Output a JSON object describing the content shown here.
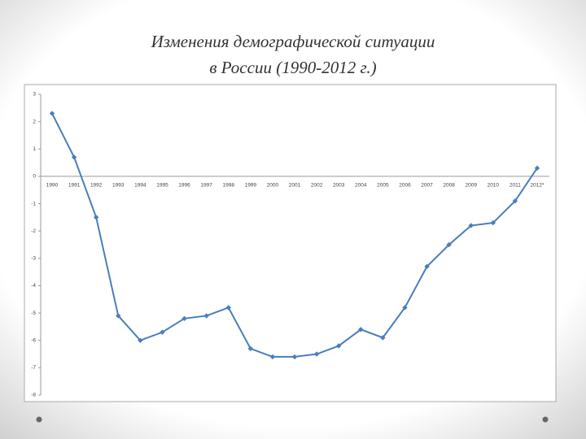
{
  "chart_data": {
    "type": "line",
    "title": [
      "Изменения демографической ситуации",
      "в России  (1990-2012 г.)"
    ],
    "categories": [
      "1990",
      "1991",
      "1992",
      "1993",
      "1994",
      "1995",
      "1996",
      "1997",
      "1998",
      "1999",
      "2000",
      "2001",
      "2002",
      "2003",
      "2004",
      "2005",
      "2006",
      "2007",
      "2008",
      "2009",
      "2010",
      "2011",
      "2012*"
    ],
    "series": [
      {
        "color": "#4a7ebb",
        "values": [
          2.3,
          0.7,
          -1.5,
          -5.1,
          -6.0,
          -5.7,
          -5.2,
          -5.1,
          -4.8,
          -6.3,
          -6.6,
          -6.6,
          -6.5,
          -6.2,
          -5.6,
          -5.9,
          -4.8,
          -3.3,
          -2.5,
          -1.8,
          -1.7,
          -0.9,
          0.3
        ]
      }
    ],
    "ylim": [
      -8,
      3
    ],
    "yticks": [
      -8,
      -7,
      -6,
      -5,
      -4,
      -3,
      -2,
      -1,
      0,
      1,
      2,
      3
    ],
    "grid": false
  }
}
